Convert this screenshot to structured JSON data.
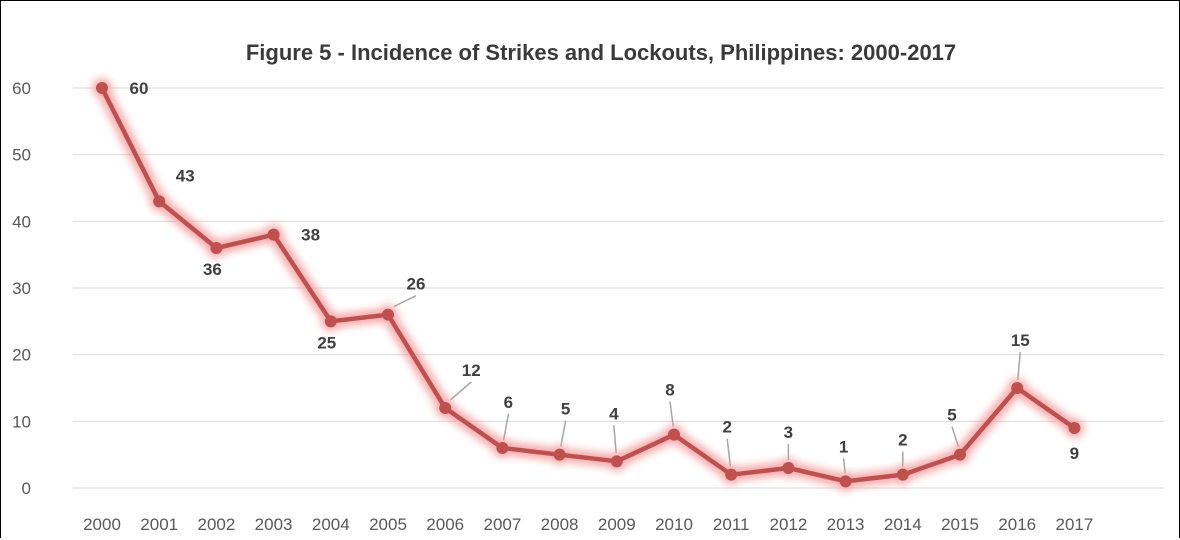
{
  "chart_data": {
    "type": "line",
    "title": "Figure 5 - Incidence of Strikes and Lockouts, Philippines: 2000-2017",
    "categories": [
      "2000",
      "2001",
      "2002",
      "2003",
      "2004",
      "2005",
      "2006",
      "2007",
      "2008",
      "2009",
      "2010",
      "2011",
      "2012",
      "2013",
      "2014",
      "2015",
      "2016",
      "2017"
    ],
    "series": [
      {
        "values": [
          60,
          43,
          36,
          38,
          25,
          26,
          12,
          6,
          5,
          4,
          8,
          2,
          3,
          1,
          2,
          5,
          15,
          9
        ]
      }
    ],
    "xlabel": "",
    "ylabel": "",
    "ylim": [
      0,
      60
    ],
    "yticks": [
      0,
      10,
      20,
      30,
      40,
      50,
      60
    ],
    "grid": true,
    "legend": "none",
    "data_labels": true,
    "colors": {
      "line": "#c0504d",
      "glow": "#f2a0a0",
      "grid": "#d9d9d9",
      "leader": "#a6a6a6"
    }
  }
}
